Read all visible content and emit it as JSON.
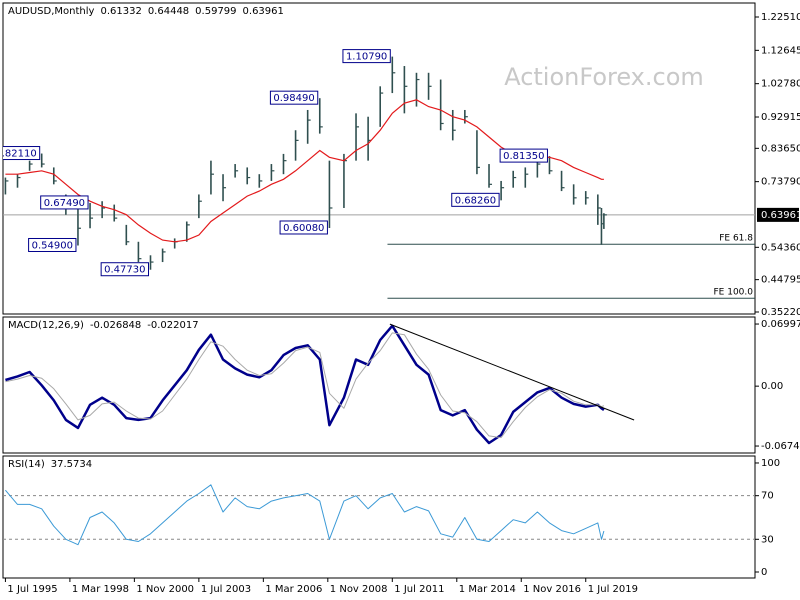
{
  "chart_data": [
    {
      "type": "ohlc",
      "title": "AUDUSD,Monthly",
      "last_bar": [
        0.61332,
        0.64448,
        0.59799,
        0.63961
      ],
      "x": [
        1995.5,
        1996,
        1996.5,
        1997,
        1997.5,
        1998,
        1998.5,
        1999,
        1999.5,
        2000,
        2000.5,
        2001,
        2001.5,
        2002,
        2002.5,
        2003,
        2003.5,
        2004,
        2004.5,
        2005,
        2005.5,
        2006,
        2006.5,
        2007,
        2007.5,
        2008,
        2008.5,
        2008.9,
        2009.5,
        2010,
        2010.5,
        2011,
        2011.5,
        2012,
        2012.5,
        2013,
        2013.5,
        2014,
        2014.5,
        2015,
        2015.5,
        2016,
        2016.5,
        2017,
        2017.5,
        2018,
        2018.5,
        2019,
        2019.5,
        2020,
        2020.15,
        2020.25
      ],
      "high": [
        0.75,
        0.76,
        0.8,
        0.8211,
        0.78,
        0.7,
        0.66,
        0.6749,
        0.68,
        0.67,
        0.61,
        0.56,
        0.52,
        0.54,
        0.57,
        0.62,
        0.7,
        0.8,
        0.76,
        0.79,
        0.78,
        0.76,
        0.79,
        0.82,
        0.89,
        0.95,
        0.9849,
        0.8,
        0.82,
        0.94,
        0.93,
        1.02,
        1.1079,
        1.08,
        1.06,
        1.06,
        1.04,
        0.95,
        0.95,
        0.89,
        0.79,
        0.74,
        0.77,
        0.78,
        0.8,
        0.8135,
        0.77,
        0.73,
        0.71,
        0.7,
        0.66,
        0.64448
      ],
      "low": [
        0.7,
        0.72,
        0.77,
        0.78,
        0.73,
        0.64,
        0.549,
        0.6,
        0.63,
        0.62,
        0.55,
        0.5,
        0.4773,
        0.5,
        0.54,
        0.56,
        0.63,
        0.7,
        0.68,
        0.75,
        0.73,
        0.72,
        0.74,
        0.76,
        0.8,
        0.85,
        0.88,
        0.6008,
        0.66,
        0.8,
        0.8,
        0.9,
        1.0,
        0.94,
        0.96,
        0.98,
        0.89,
        0.86,
        0.91,
        0.76,
        0.72,
        0.6826,
        0.72,
        0.72,
        0.75,
        0.76,
        0.71,
        0.67,
        0.67,
        0.61,
        0.551,
        0.59799
      ],
      "close": [
        0.74,
        0.75,
        0.79,
        0.79,
        0.74,
        0.66,
        0.6,
        0.63,
        0.66,
        0.63,
        0.56,
        0.51,
        0.5,
        0.53,
        0.56,
        0.61,
        0.68,
        0.76,
        0.72,
        0.77,
        0.75,
        0.74,
        0.77,
        0.8,
        0.86,
        0.92,
        0.9,
        0.66,
        0.8,
        0.9,
        0.86,
        1.0,
        1.06,
        1.02,
        1.04,
        1.02,
        0.91,
        0.89,
        0.93,
        0.78,
        0.73,
        0.72,
        0.75,
        0.76,
        0.79,
        0.77,
        0.72,
        0.69,
        0.69,
        0.66,
        0.61332,
        0.63961
      ],
      "color": "#2f4f4f",
      "ma": {
        "color": "#e31a1c",
        "values": [
          0.76,
          0.76,
          0.765,
          0.77,
          0.76,
          0.73,
          0.7,
          0.68,
          0.665,
          0.655,
          0.64,
          0.61,
          0.585,
          0.565,
          0.56,
          0.565,
          0.58,
          0.62,
          0.645,
          0.67,
          0.695,
          0.71,
          0.73,
          0.745,
          0.77,
          0.8,
          0.83,
          0.81,
          0.8,
          0.83,
          0.85,
          0.89,
          0.94,
          0.97,
          0.98,
          0.96,
          0.95,
          0.93,
          0.92,
          0.9,
          0.87,
          0.84,
          0.82,
          0.81,
          0.81,
          0.81,
          0.8,
          0.78,
          0.765,
          0.75,
          0.745,
          0.745
        ]
      },
      "xlim": [
        1995.4,
        2026.5
      ],
      "ylim": [
        0.3463,
        1.2665
      ],
      "yticks": [
        {
          "value": 1.2251,
          "label": "1.22510"
        },
        1.12645,
        {
          "value": 1.0278,
          "label": "1.02780"
        },
        0.92915,
        {
          "value": 0.8365,
          "label": "0.83650"
        },
        {
          "value": 0.7379,
          "label": "0.73790"
        },
        {
          "value": 0.5436,
          "label": "0.54360"
        },
        0.44795,
        {
          "value": 0.3522,
          "label": "0.35220"
        }
      ],
      "annotations": [
        {
          "label": "0.82110",
          "value": 0.8211,
          "x": 1997
        },
        {
          "label": "0.67490",
          "value": 0.6749,
          "x": 1999
        },
        {
          "label": "0.54900",
          "value": 0.549,
          "x": 1998.5
        },
        {
          "label": "0.47730",
          "value": 0.4773,
          "x": 2001.5
        },
        {
          "label": "0.98490",
          "value": 0.9849,
          "x": 2008.5
        },
        {
          "label": "0.60080",
          "value": 0.6008,
          "x": 2008.9
        },
        {
          "label": "1.10790",
          "value": 1.1079,
          "x": 2011.5
        },
        {
          "label": "0.68260",
          "value": 0.6826,
          "x": 2016
        },
        {
          "label": "0.81350",
          "value": 0.8135,
          "x": 2018
        }
      ],
      "levels": [
        {
          "label": "FE 61.8",
          "value": 0.5528,
          "from": 2011.3
        },
        {
          "label": "FE 100.0",
          "value": 0.393,
          "from": 2011.3
        }
      ],
      "watermark": "ActionForex.com"
    },
    {
      "type": "line",
      "title": "MACD(12,26,9)",
      "x": [
        1995.5,
        1996,
        1996.5,
        1997,
        1997.5,
        1998,
        1998.5,
        1999,
        1999.5,
        2000,
        2000.5,
        2001,
        2001.5,
        2002,
        2002.5,
        2003,
        2003.5,
        2004,
        2004.5,
        2005,
        2005.5,
        2006,
        2006.5,
        2007,
        2007.5,
        2008,
        2008.5,
        2008.9,
        2009.5,
        2010,
        2010.5,
        2011,
        2011.5,
        2012,
        2012.5,
        2013,
        2013.5,
        2014,
        2014.5,
        2015,
        2015.5,
        2016,
        2016.5,
        2017,
        2017.5,
        2018,
        2018.5,
        2019,
        2019.5,
        2020,
        2020.15,
        2020.25
      ],
      "series": [
        {
          "color": "#00008b",
          "width": 2.5,
          "values": [
            0.0069,
            0.011,
            0.016,
            0.001,
            -0.016,
            -0.038,
            -0.047,
            -0.021,
            -0.013,
            -0.021,
            -0.036,
            -0.038,
            -0.036,
            -0.016,
            0.001,
            0.018,
            0.041,
            0.058,
            0.03,
            0.02,
            0.013,
            0.01,
            0.018,
            0.035,
            0.043,
            0.046,
            0.03,
            -0.044,
            -0.013,
            0.03,
            0.024,
            0.052,
            0.068,
            0.046,
            0.024,
            0.013,
            -0.027,
            -0.033,
            -0.027,
            -0.049,
            -0.064,
            -0.055,
            -0.029,
            -0.018,
            -0.007,
            -0.002,
            -0.013,
            -0.02,
            -0.023,
            -0.021,
            -0.025,
            -0.026848
          ]
        },
        {
          "color": "#a9a9a9",
          "width": 1,
          "values": [
            0.005,
            0.008,
            0.012,
            0.009,
            -0.003,
            -0.02,
            -0.038,
            -0.033,
            -0.02,
            -0.018,
            -0.028,
            -0.036,
            -0.037,
            -0.028,
            -0.01,
            0.008,
            0.03,
            0.05,
            0.045,
            0.03,
            0.018,
            0.012,
            0.014,
            0.026,
            0.04,
            0.044,
            0.038,
            -0.008,
            -0.025,
            0.008,
            0.026,
            0.04,
            0.06,
            0.058,
            0.036,
            0.019,
            -0.01,
            -0.028,
            -0.03,
            -0.04,
            -0.056,
            -0.058,
            -0.04,
            -0.024,
            -0.012,
            -0.004,
            -0.008,
            -0.017,
            -0.021,
            -0.021,
            -0.023,
            -0.022017
          ]
        }
      ],
      "trendline": {
        "x": [
          2011.4,
          2021.5
        ],
        "y": [
          0.0699,
          -0.0381
        ]
      },
      "xlim": [
        1995.4,
        2026.5
      ],
      "ylim": [
        -0.0753,
        0.0779
      ],
      "yticks": [
        0.069977,
        {
          "value": 0,
          "label": "0.00"
        },
        -0.067448
      ]
    },
    {
      "type": "line",
      "title": "RSI(14)",
      "x": [
        1995.5,
        1996,
        1996.5,
        1997,
        1997.5,
        1998,
        1998.5,
        1999,
        1999.5,
        2000,
        2000.5,
        2001,
        2001.5,
        2002,
        2002.5,
        2003,
        2003.5,
        2004,
        2004.5,
        2005,
        2005.5,
        2006,
        2006.5,
        2007,
        2007.5,
        2008,
        2008.5,
        2008.9,
        2009.5,
        2010,
        2010.5,
        2011,
        2011.5,
        2012,
        2012.5,
        2013,
        2013.5,
        2014,
        2014.5,
        2015,
        2015.5,
        2016,
        2016.5,
        2017,
        2017.5,
        2018,
        2018.5,
        2019,
        2019.5,
        2020,
        2020.15,
        2020.25
      ],
      "series": [
        {
          "color": "#3c9ad6",
          "width": 1,
          "values": [
            75,
            62,
            62,
            58,
            42,
            30,
            25,
            50,
            55,
            45,
            30,
            28,
            35,
            45,
            55,
            65,
            72,
            80,
            55,
            68,
            60,
            58,
            65,
            68,
            70,
            72,
            65,
            30,
            65,
            70,
            58,
            68,
            72,
            55,
            60,
            56,
            35,
            32,
            50,
            30,
            28,
            38,
            48,
            45,
            55,
            45,
            38,
            35,
            40,
            45,
            30,
            37.5734
          ]
        }
      ],
      "guides": [
        70,
        30
      ],
      "xlim": [
        1995.4,
        2026.5
      ],
      "ylim": [
        -5.5,
        106.4
      ],
      "yticks": [
        100,
        70,
        30,
        0
      ],
      "xticks": [
        {
          "value": 1995.5,
          "label": "1 Jul 1995"
        },
        {
          "value": 1998.167,
          "label": "1 Mar 1998"
        },
        {
          "value": 2000.833,
          "label": "1 Nov 2000"
        },
        {
          "value": 2003.5,
          "label": "1 Jul 2003"
        },
        {
          "value": 2006.167,
          "label": "1 Mar 2006"
        },
        {
          "value": 2008.833,
          "label": "1 Nov 2008"
        },
        {
          "value": 2011.5,
          "label": "1 Jul 2011"
        },
        {
          "value": 2014.167,
          "label": "1 Mar 2014"
        },
        {
          "value": 2016.833,
          "label": "1 Nov 2016"
        },
        {
          "value": 2019.5,
          "label": "1 Jul 2019"
        }
      ]
    }
  ]
}
